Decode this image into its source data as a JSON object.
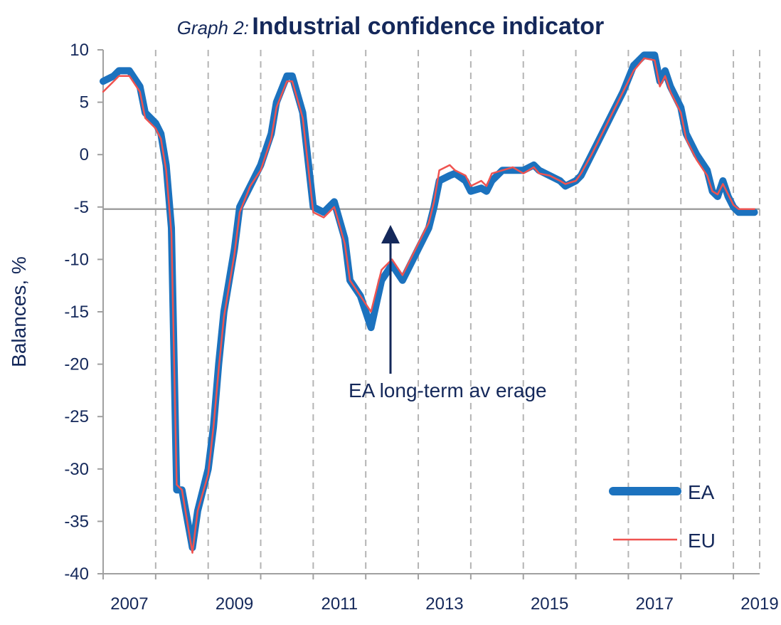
{
  "title": {
    "prefix": "Graph 2:",
    "main": "Industrial confidence indicator"
  },
  "chart_data": {
    "type": "line",
    "title": "Industrial confidence indicator",
    "ylabel": "Balances, %",
    "xlabel": "",
    "ylim": [
      -40,
      10
    ],
    "xlim": [
      2007.0,
      2019.5
    ],
    "yticks": [
      10,
      5,
      0,
      -5,
      -10,
      -15,
      -20,
      -25,
      -30,
      -35,
      -40
    ],
    "xticks": [
      {
        "x": 2007.5,
        "label": "2007"
      },
      {
        "x": 2009.5,
        "label": "2009"
      },
      {
        "x": 2011.5,
        "label": "2011"
      },
      {
        "x": 2013.5,
        "label": "2013"
      },
      {
        "x": 2015.5,
        "label": "2015"
      },
      {
        "x": 2017.5,
        "label": "2017"
      },
      {
        "x": 2019.5,
        "label": "2019"
      }
    ],
    "gridlines_x": [
      2008,
      2009,
      2010,
      2011,
      2012,
      2013,
      2014,
      2015,
      2016,
      2017,
      2018,
      2019
    ],
    "grid": "vertical dashed",
    "legend_position": "bottom-right",
    "reference_line": {
      "y": -5.2,
      "label": "EA long-term av erage"
    },
    "series": [
      {
        "name": "EA",
        "color": "#1c72be",
        "x": [
          2007.0,
          2007.2,
          2007.3,
          2007.5,
          2007.7,
          2007.8,
          2008.0,
          2008.1,
          2008.2,
          2008.3,
          2008.4,
          2008.5,
          2008.7,
          2008.8,
          2009.0,
          2009.1,
          2009.2,
          2009.3,
          2009.5,
          2009.6,
          2009.8,
          2010.0,
          2010.2,
          2010.3,
          2010.5,
          2010.6,
          2010.8,
          2011.0,
          2011.2,
          2011.3,
          2011.4,
          2011.6,
          2011.7,
          2011.9,
          2012.1,
          2012.3,
          2012.5,
          2012.7,
          2013.0,
          2013.2,
          2013.3,
          2013.4,
          2013.6,
          2013.7,
          2013.9,
          2014.0,
          2014.2,
          2014.3,
          2014.4,
          2014.6,
          2014.8,
          2015.0,
          2015.2,
          2015.3,
          2015.5,
          2015.7,
          2015.8,
          2016.0,
          2016.1,
          2016.3,
          2016.5,
          2016.7,
          2016.9,
          2017.1,
          2017.3,
          2017.5,
          2017.6,
          2017.7,
          2017.8,
          2018.0,
          2018.1,
          2018.3,
          2018.5,
          2018.6,
          2018.7,
          2018.8,
          2018.9,
          2019.0,
          2019.1,
          2019.2,
          2019.3,
          2019.4
        ],
        "values": [
          7.0,
          7.5,
          8.0,
          8.0,
          6.5,
          4.0,
          3.0,
          2.0,
          -1.0,
          -7.0,
          -32.0,
          -32.0,
          -37.5,
          -34.0,
          -30.0,
          -26.0,
          -20.0,
          -15.0,
          -9.0,
          -5.0,
          -3.0,
          -1.0,
          2.0,
          5.0,
          7.5,
          7.5,
          4.0,
          -5.0,
          -5.5,
          -5.0,
          -4.5,
          -8.0,
          -12.0,
          -13.5,
          -16.5,
          -12.0,
          -10.5,
          -12.0,
          -9.0,
          -7.0,
          -5.0,
          -2.5,
          -2.0,
          -1.8,
          -2.5,
          -3.5,
          -3.2,
          -3.5,
          -2.5,
          -1.5,
          -1.5,
          -1.5,
          -1.0,
          -1.5,
          -2.0,
          -2.5,
          -3.0,
          -2.5,
          -2.0,
          0.0,
          2.0,
          4.0,
          6.0,
          8.5,
          9.5,
          9.5,
          7.0,
          8.0,
          6.5,
          4.5,
          2.0,
          0.0,
          -1.5,
          -3.5,
          -4.0,
          -2.5,
          -4.0,
          -5.0,
          -5.5,
          -5.5,
          -5.5,
          -5.5
        ]
      },
      {
        "name": "EU",
        "color": "#ef5350",
        "x": [
          2007.0,
          2007.2,
          2007.3,
          2007.5,
          2007.7,
          2007.8,
          2008.0,
          2008.1,
          2008.2,
          2008.3,
          2008.4,
          2008.5,
          2008.7,
          2008.8,
          2009.0,
          2009.1,
          2009.2,
          2009.3,
          2009.5,
          2009.6,
          2009.8,
          2010.0,
          2010.2,
          2010.3,
          2010.5,
          2010.6,
          2010.8,
          2011.0,
          2011.2,
          2011.3,
          2011.4,
          2011.6,
          2011.7,
          2011.9,
          2012.1,
          2012.3,
          2012.5,
          2012.7,
          2013.0,
          2013.2,
          2013.3,
          2013.4,
          2013.6,
          2013.7,
          2013.9,
          2014.0,
          2014.2,
          2014.3,
          2014.4,
          2014.6,
          2014.8,
          2015.0,
          2015.2,
          2015.3,
          2015.5,
          2015.7,
          2015.8,
          2016.0,
          2016.1,
          2016.3,
          2016.5,
          2016.7,
          2016.9,
          2017.1,
          2017.3,
          2017.5,
          2017.6,
          2017.7,
          2017.8,
          2018.0,
          2018.1,
          2018.3,
          2018.5,
          2018.6,
          2018.7,
          2018.8,
          2018.9,
          2019.0,
          2019.1,
          2019.2,
          2019.3,
          2019.4
        ],
        "values": [
          6.0,
          7.0,
          7.5,
          7.5,
          6.0,
          3.5,
          2.5,
          1.5,
          -1.5,
          -7.5,
          -31.5,
          -32.0,
          -38.0,
          -34.0,
          -30.5,
          -26.0,
          -20.5,
          -15.5,
          -9.5,
          -5.5,
          -3.0,
          -1.5,
          1.5,
          4.5,
          7.0,
          7.0,
          3.5,
          -5.5,
          -6.0,
          -5.5,
          -5.0,
          -8.5,
          -12.0,
          -13.5,
          -15.0,
          -11.0,
          -10.0,
          -11.5,
          -8.5,
          -6.5,
          -4.5,
          -1.5,
          -1.0,
          -1.5,
          -2.0,
          -3.0,
          -2.5,
          -3.0,
          -1.8,
          -1.5,
          -1.2,
          -1.8,
          -1.2,
          -1.8,
          -2.0,
          -2.5,
          -2.8,
          -2.5,
          -1.8,
          0.0,
          2.0,
          4.0,
          6.0,
          8.0,
          9.2,
          9.0,
          6.5,
          7.5,
          6.0,
          4.0,
          1.5,
          -0.5,
          -2.0,
          -3.5,
          -3.8,
          -2.8,
          -3.8,
          -4.8,
          -5.2,
          -5.2,
          -5.2,
          -5.2
        ]
      }
    ]
  }
}
